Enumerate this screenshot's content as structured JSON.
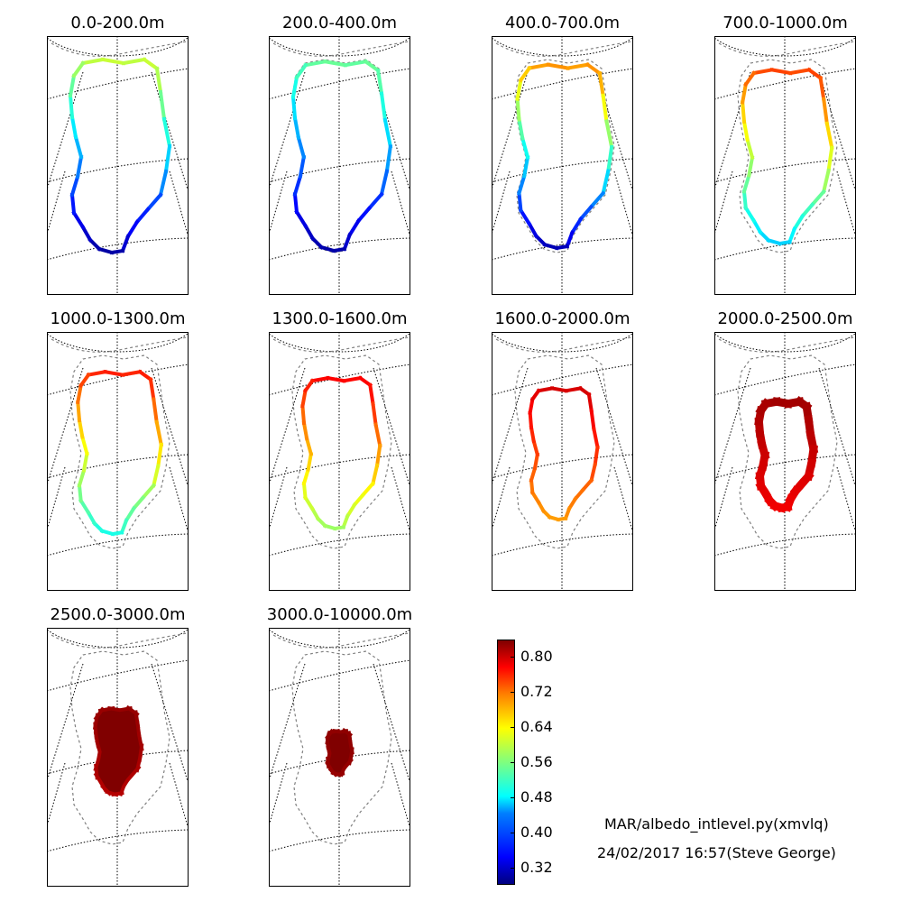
{
  "chart_data": {
    "type": "small-multiples-map",
    "panels": [
      {
        "title": "0.0-200.0m",
        "albedo_range": [
          0.3,
          0.6
        ],
        "extent": "coastal margin"
      },
      {
        "title": "200.0-400.0m",
        "albedo_range": [
          0.3,
          0.55
        ],
        "extent": "coastal margin"
      },
      {
        "title": "400.0-700.0m",
        "albedo_range": [
          0.3,
          0.7
        ],
        "extent": "coastal margin"
      },
      {
        "title": "700.0-1000.0m",
        "albedo_range": [
          0.45,
          0.75
        ],
        "extent": "ice sheet margin"
      },
      {
        "title": "1000.0-1300.0m",
        "albedo_range": [
          0.48,
          0.78
        ],
        "extent": "ice sheet margin"
      },
      {
        "title": "1300.0-1600.0m",
        "albedo_range": [
          0.55,
          0.8
        ],
        "extent": "ice sheet margin"
      },
      {
        "title": "1600.0-2000.0m",
        "albedo_range": [
          0.66,
          0.82
        ],
        "extent": "interior ring"
      },
      {
        "title": "2000.0-2500.0m",
        "albedo_range": [
          0.76,
          0.84
        ],
        "extent": "interior ring"
      },
      {
        "title": "2500.0-3000.0m",
        "albedo_range": [
          0.8,
          0.84
        ],
        "extent": "interior"
      },
      {
        "title": "3000.0-10000.0m",
        "albedo_range": [
          0.82,
          0.84
        ],
        "extent": "summit"
      }
    ],
    "colorbar": {
      "ticks": [
        "0.80",
        "0.72",
        "0.64",
        "0.56",
        "0.48",
        "0.40",
        "0.32"
      ],
      "tick_values": [
        0.8,
        0.72,
        0.64,
        0.56,
        0.48,
        0.4,
        0.32
      ],
      "range": [
        0.28,
        0.84
      ],
      "colormap": "jet"
    }
  },
  "footer": {
    "script": "MAR/albedo_intlevel.py(xmvlq)",
    "stamp": "24/02/2017 16:57(Steve George)"
  },
  "colors": {
    "coast": "#808080",
    "grid": "#000000"
  }
}
